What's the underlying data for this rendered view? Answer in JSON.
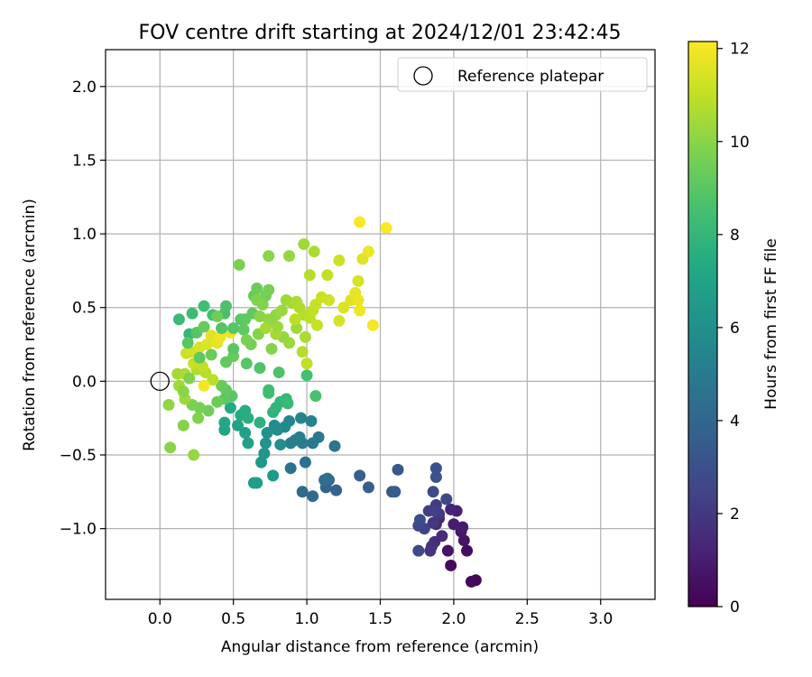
{
  "chart_data": {
    "type": "scatter",
    "title": "FOV centre drift starting at 2024/12/01 23:42:45",
    "xlabel": "Angular distance from reference (arcmin)",
    "ylabel": "Rotation from reference (arcmin)",
    "xlim": [
      -0.37,
      3.37
    ],
    "ylim": [
      -1.48,
      2.25
    ],
    "xticks": [
      0.0,
      0.5,
      1.0,
      1.5,
      2.0,
      2.5,
      3.0
    ],
    "xtick_labels": [
      "0.0",
      "0.5",
      "1.0",
      "1.5",
      "2.0",
      "2.5",
      "3.0"
    ],
    "yticks": [
      -1.0,
      -0.5,
      0.0,
      0.5,
      1.0,
      1.5,
      2.0
    ],
    "ytick_labels": [
      "−1.0",
      "−0.5",
      "0.0",
      "0.5",
      "1.0",
      "1.5",
      "2.0"
    ],
    "grid": true,
    "legend": {
      "placement": "top-right",
      "entries": [
        "Reference platepar"
      ]
    },
    "colorbar": {
      "label": "Hours from first FF file",
      "range": [
        0,
        12.15
      ],
      "ticks": [
        0,
        2,
        4,
        6,
        8,
        10,
        12
      ],
      "tick_labels": [
        "0",
        "2",
        "4",
        "6",
        "8",
        "10",
        "12"
      ],
      "colormap": "viridis"
    },
    "reference_point": {
      "x": 0.0,
      "y": 0.0,
      "label": "Reference platepar"
    },
    "series": [
      {
        "points": [
          [
            2.15,
            -1.35,
            0.1
          ],
          [
            2.12,
            -1.36,
            0.2
          ],
          [
            1.98,
            -1.25,
            0.3
          ],
          [
            2.09,
            -1.15,
            0.4
          ],
          [
            1.96,
            -1.15,
            0.6
          ],
          [
            2.07,
            -1.08,
            0.7
          ],
          [
            2.05,
            -1.02,
            0.8
          ],
          [
            2.06,
            -0.99,
            0.9
          ],
          [
            2.0,
            -0.97,
            1.0
          ],
          [
            2.02,
            -0.88,
            1.1
          ],
          [
            1.98,
            -0.87,
            1.2
          ],
          [
            1.9,
            -0.93,
            1.3
          ],
          [
            1.88,
            -0.97,
            1.4
          ],
          [
            1.92,
            -1.05,
            1.5
          ],
          [
            1.87,
            -1.09,
            1.6
          ],
          [
            1.85,
            -1.12,
            1.7
          ],
          [
            1.84,
            -1.15,
            1.8
          ],
          [
            1.86,
            -0.96,
            1.9
          ],
          [
            1.9,
            -0.9,
            2.0
          ],
          [
            1.88,
            -0.84,
            2.1
          ],
          [
            1.83,
            -0.88,
            2.2
          ],
          [
            1.87,
            -0.88,
            2.3
          ],
          [
            1.8,
            -1.0,
            2.4
          ],
          [
            1.76,
            -0.98,
            2.5
          ],
          [
            1.76,
            -1.15,
            2.6
          ],
          [
            1.95,
            -0.8,
            2.7
          ],
          [
            1.86,
            -0.75,
            2.8
          ],
          [
            1.77,
            -0.94,
            2.9
          ],
          [
            1.88,
            -0.59,
            3.0
          ],
          [
            1.88,
            -0.65,
            3.1
          ],
          [
            1.62,
            -0.6,
            3.3
          ],
          [
            1.58,
            -0.75,
            3.4
          ],
          [
            1.6,
            -0.75,
            3.5
          ],
          [
            1.42,
            -0.72,
            3.6
          ],
          [
            1.36,
            -0.64,
            3.7
          ],
          [
            1.2,
            -0.74,
            3.8
          ],
          [
            1.15,
            -0.67,
            3.9
          ],
          [
            1.13,
            -0.72,
            4.0
          ],
          [
            1.04,
            -0.78,
            4.1
          ],
          [
            0.97,
            -0.75,
            4.2
          ],
          [
            1.12,
            -0.67,
            4.3
          ],
          [
            1.14,
            -0.66,
            4.4
          ],
          [
            0.99,
            -0.55,
            4.5
          ],
          [
            0.89,
            -0.59,
            4.6
          ],
          [
            1.19,
            -0.44,
            4.7
          ],
          [
            1.08,
            -0.38,
            4.8
          ],
          [
            1.04,
            -0.42,
            4.9
          ],
          [
            0.97,
            -0.42,
            5.0
          ],
          [
            0.95,
            -0.38,
            5.1
          ],
          [
            0.89,
            -0.42,
            5.2
          ],
          [
            0.92,
            -0.4,
            5.3
          ],
          [
            1.03,
            -0.27,
            5.4
          ],
          [
            0.96,
            -0.25,
            5.5
          ],
          [
            0.88,
            -0.27,
            5.6
          ],
          [
            0.85,
            -0.31,
            5.7
          ],
          [
            0.78,
            -0.3,
            5.8
          ],
          [
            0.8,
            -0.33,
            5.9
          ],
          [
            0.82,
            -0.43,
            6.0
          ],
          [
            0.73,
            -0.35,
            6.1
          ],
          [
            0.72,
            -0.42,
            6.2
          ],
          [
            0.71,
            -0.49,
            6.3
          ],
          [
            0.69,
            -0.55,
            6.4
          ],
          [
            0.77,
            -0.64,
            6.5
          ],
          [
            0.64,
            -0.69,
            6.6
          ],
          [
            0.66,
            -0.69,
            6.7
          ],
          [
            0.58,
            -0.35,
            6.8
          ],
          [
            0.6,
            -0.42,
            6.9
          ],
          [
            0.53,
            -0.3,
            7.0
          ],
          [
            0.44,
            -0.33,
            7.1
          ],
          [
            0.44,
            -0.28,
            7.2
          ],
          [
            0.48,
            -0.18,
            7.3
          ],
          [
            0.55,
            -0.23,
            7.4
          ],
          [
            0.58,
            -0.2,
            7.5
          ],
          [
            0.6,
            -0.25,
            7.6
          ],
          [
            0.68,
            -0.28,
            7.7
          ],
          [
            0.77,
            -0.21,
            7.8
          ],
          [
            0.79,
            -0.18,
            7.9
          ],
          [
            0.82,
            -0.14,
            8.0
          ],
          [
            0.86,
            -0.12,
            8.1
          ],
          [
            0.87,
            -0.15,
            8.2
          ],
          [
            0.74,
            -0.08,
            8.3
          ],
          [
            0.74,
            -0.06,
            8.4
          ],
          [
            1.0,
            0.04,
            8.5
          ],
          [
            1.06,
            -0.1,
            8.6
          ],
          [
            0.81,
            0.06,
            8.7
          ],
          [
            0.68,
            0.09,
            8.8
          ],
          [
            0.59,
            0.12,
            8.9
          ],
          [
            0.49,
            -0.1,
            9.0
          ],
          [
            0.44,
            -0.12,
            9.1
          ],
          [
            0.45,
            -0.06,
            9.2
          ],
          [
            0.42,
            -0.03,
            9.3
          ],
          [
            0.39,
            -0.14,
            9.4
          ],
          [
            0.33,
            -0.2,
            9.5
          ],
          [
            0.27,
            -0.18,
            9.6
          ],
          [
            0.22,
            -0.16,
            9.7
          ],
          [
            0.26,
            -0.25,
            9.8
          ],
          [
            0.16,
            -0.3,
            9.9
          ],
          [
            0.07,
            -0.45,
            10.0
          ],
          [
            0.06,
            -0.16,
            10.1
          ],
          [
            0.23,
            -0.5,
            10.2
          ],
          [
            0.17,
            -0.12,
            10.3
          ],
          [
            0.13,
            -0.03,
            10.4
          ],
          [
            0.12,
            0.05,
            10.5
          ],
          [
            0.17,
            0.05,
            10.6
          ],
          [
            0.25,
            0.08,
            10.7
          ],
          [
            0.31,
            0.06,
            10.8
          ],
          [
            0.36,
            0.01,
            10.9
          ],
          [
            0.29,
            0.1,
            11.0
          ],
          [
            0.23,
            0.12,
            11.1
          ],
          [
            0.18,
            0.19,
            11.2
          ],
          [
            0.21,
            0.2,
            11.3
          ],
          [
            0.27,
            0.23,
            11.4
          ],
          [
            0.32,
            0.25,
            11.5
          ],
          [
            0.35,
            0.31,
            11.6
          ],
          [
            0.39,
            0.26,
            11.7
          ],
          [
            0.41,
            0.3,
            11.8
          ],
          [
            0.48,
            0.33,
            11.9
          ],
          [
            0.3,
            -0.03,
            12.0
          ],
          [
            0.2,
            0.32,
            8.0
          ],
          [
            0.13,
            0.42,
            8.2
          ],
          [
            0.22,
            0.46,
            8.3
          ],
          [
            0.3,
            0.51,
            8.4
          ],
          [
            0.36,
            0.45,
            8.5
          ],
          [
            0.44,
            0.46,
            8.6
          ],
          [
            0.45,
            0.51,
            8.7
          ],
          [
            0.42,
            0.36,
            8.8
          ],
          [
            0.5,
            0.36,
            8.9
          ],
          [
            0.55,
            0.42,
            9.0
          ],
          [
            0.58,
            0.42,
            9.1
          ],
          [
            0.63,
            0.46,
            9.2
          ],
          [
            0.64,
            0.58,
            9.3
          ],
          [
            0.66,
            0.63,
            9.4
          ],
          [
            0.72,
            0.58,
            9.5
          ],
          [
            0.74,
            0.62,
            9.6
          ],
          [
            0.54,
            0.79,
            9.7
          ],
          [
            0.66,
            0.55,
            9.8
          ],
          [
            0.7,
            0.52,
            9.9
          ],
          [
            0.68,
            0.44,
            10.0
          ],
          [
            0.74,
            0.42,
            10.1
          ],
          [
            0.79,
            0.45,
            10.2
          ],
          [
            0.83,
            0.48,
            10.3
          ],
          [
            0.86,
            0.55,
            10.4
          ],
          [
            0.9,
            0.53,
            10.5
          ],
          [
            0.93,
            0.54,
            10.6
          ],
          [
            0.95,
            0.5,
            10.7
          ],
          [
            0.98,
            0.45,
            10.8
          ],
          [
            1.02,
            0.43,
            10.9
          ],
          [
            1.04,
            0.48,
            11.0
          ],
          [
            1.06,
            0.52,
            11.1
          ],
          [
            1.1,
            0.57,
            11.2
          ],
          [
            1.15,
            0.55,
            11.3
          ],
          [
            1.22,
            0.41,
            11.4
          ],
          [
            1.25,
            0.5,
            11.5
          ],
          [
            1.3,
            0.55,
            11.6
          ],
          [
            1.33,
            0.6,
            11.7
          ],
          [
            1.35,
            0.55,
            11.8
          ],
          [
            1.36,
            0.48,
            11.9
          ],
          [
            1.45,
            0.38,
            12.0
          ],
          [
            0.74,
            0.85,
            10.0
          ],
          [
            0.88,
            0.85,
            10.2
          ],
          [
            0.98,
            0.93,
            10.4
          ],
          [
            1.05,
            0.88,
            10.6
          ],
          [
            1.02,
            0.72,
            10.8
          ],
          [
            1.14,
            0.72,
            11.0
          ],
          [
            1.22,
            0.82,
            11.2
          ],
          [
            1.35,
            0.68,
            11.4
          ],
          [
            1.38,
            0.83,
            11.6
          ],
          [
            1.42,
            0.88,
            11.8
          ],
          [
            1.36,
            1.08,
            12.1
          ],
          [
            1.54,
            1.04,
            12.1
          ],
          [
            0.5,
            0.17,
            9.3
          ],
          [
            0.62,
            0.25,
            9.6
          ],
          [
            0.76,
            0.22,
            9.9
          ],
          [
            0.84,
            0.3,
            10.2
          ],
          [
            0.93,
            0.36,
            10.4
          ],
          [
            0.99,
            0.3,
            10.6
          ],
          [
            0.97,
            0.2,
            10.8
          ],
          [
            1.0,
            0.12,
            11.0
          ],
          [
            0.79,
            0.32,
            10.5
          ],
          [
            0.88,
            0.26,
            10.3
          ],
          [
            0.92,
            0.42,
            10.9
          ],
          [
            1.07,
            0.38,
            11.1
          ],
          [
            0.57,
            0.35,
            9.1
          ],
          [
            0.5,
            0.22,
            9.0
          ],
          [
            0.45,
            0.13,
            9.2
          ],
          [
            0.35,
            0.18,
            9.4
          ],
          [
            0.27,
            0.16,
            9.1
          ],
          [
            0.25,
            0.33,
            8.9
          ],
          [
            0.19,
            0.26,
            9.0
          ],
          [
            0.3,
            0.37,
            9.3
          ],
          [
            0.39,
            0.44,
            9.5
          ],
          [
            0.2,
            0.02,
            9.8
          ],
          [
            0.16,
            -0.07,
            10.0
          ],
          [
            0.59,
            0.28,
            9.7
          ],
          [
            0.67,
            0.32,
            9.9
          ],
          [
            0.76,
            0.41,
            10.1
          ],
          [
            0.8,
            0.37,
            10.3
          ],
          [
            0.72,
            0.36,
            10.5
          ]
        ]
      }
    ]
  }
}
